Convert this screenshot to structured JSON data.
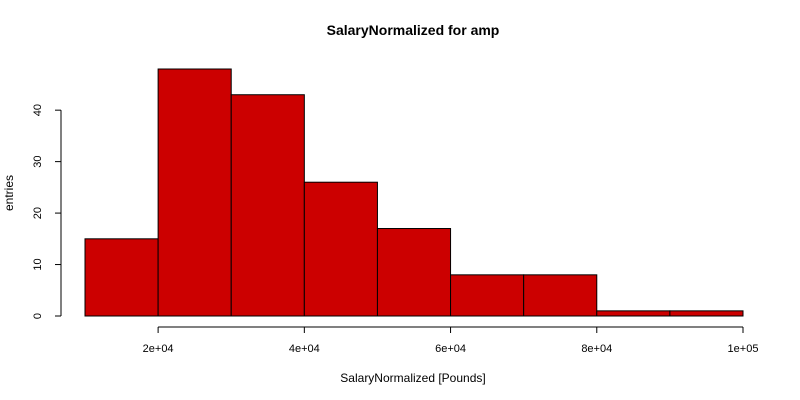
{
  "chart_data": {
    "type": "bar",
    "title": "SalaryNormalized for amp",
    "xlabel": "SalaryNormalized [Pounds]",
    "ylabel": "entries",
    "bin_edges": [
      10000,
      20000,
      30000,
      40000,
      50000,
      60000,
      70000,
      80000,
      90000,
      100000
    ],
    "values": [
      15,
      48,
      43,
      26,
      17,
      8,
      8,
      1,
      1
    ],
    "xlim": [
      10000,
      100000
    ],
    "ylim": [
      0,
      48
    ],
    "x_ticks": [
      20000,
      40000,
      60000,
      80000,
      100000
    ],
    "x_tick_labels": [
      "2e+04",
      "4e+04",
      "6e+04",
      "8e+04",
      "1e+05"
    ],
    "y_ticks": [
      0,
      10,
      20,
      30,
      40
    ],
    "y_tick_labels": [
      "0",
      "10",
      "20",
      "30",
      "40"
    ],
    "bar_color": "#cc0000",
    "grid": false,
    "legend": "none"
  }
}
